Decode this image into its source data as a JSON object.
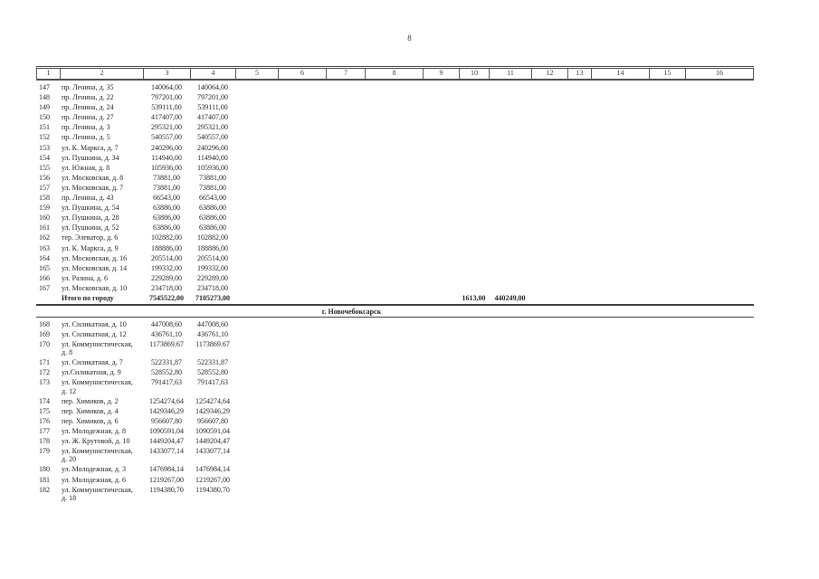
{
  "page": {
    "number": "8"
  },
  "table": {
    "column_headers": [
      "1",
      "2",
      "3",
      "4",
      "5",
      "6",
      "7",
      "8",
      "9",
      "10",
      "11",
      "12",
      "13",
      "14",
      "15",
      "16"
    ],
    "city_section_1": {
      "rows": [
        {
          "num": "147",
          "address": "пр. Ленина, д. 35",
          "v3": "140064,00",
          "v4": "140064,00"
        },
        {
          "num": "148",
          "address": "пр. Ленина, д. 22",
          "v3": "797201,00",
          "v4": "797201,00"
        },
        {
          "num": "149",
          "address": "пр. Ленина, д. 24",
          "v3": "539111,00",
          "v4": "539111,00"
        },
        {
          "num": "150",
          "address": "пр. Ленина, д. 27",
          "v3": "417407,00",
          "v4": "417407,00"
        },
        {
          "num": "151",
          "address": "пр. Ленина, д. 3",
          "v3": "295321,00",
          "v4": "295321,00"
        },
        {
          "num": "152",
          "address": "пр. Ленина, д. 5",
          "v3": "540557,00",
          "v4": "540557,00"
        },
        {
          "num": "153",
          "address": "ул. К. Маркса, д. 7",
          "v3": "240296,00",
          "v4": "240296,00"
        },
        {
          "num": "154",
          "address": "ул. Пушкина, д. 34",
          "v3": "114940,00",
          "v4": "114940,00"
        },
        {
          "num": "155",
          "address": "ул. Южная, д. 8",
          "v3": "105936,00",
          "v4": "105936,00"
        },
        {
          "num": "156",
          "address": "ул. Московская, д. 8",
          "v3": "73881,00",
          "v4": "73881,00"
        },
        {
          "num": "157",
          "address": "ул. Московская, д. 7",
          "v3": "73881,00",
          "v4": "73881,00"
        },
        {
          "num": "158",
          "address": "пр. Ленина, д. 43",
          "v3": "66543,00",
          "v4": "66543,00"
        },
        {
          "num": "159",
          "address": "ул. Пушкина, д. 54",
          "v3": "63886,00",
          "v4": "63886,00"
        },
        {
          "num": "160",
          "address": "ул. Пушкина, д. 28",
          "v3": "63886,00",
          "v4": "63886,00"
        },
        {
          "num": "161",
          "address": "ул. Пушкина, д. 52",
          "v3": "63886,00",
          "v4": "63886,00"
        },
        {
          "num": "162",
          "address": "тер. Элеватор, д. 6",
          "v3": "102882,00",
          "v4": "102882,00"
        },
        {
          "num": "163",
          "address": "ул. К. Маркса, д. 9",
          "v3": "188886,00",
          "v4": "188886,00"
        },
        {
          "num": "164",
          "address": "ул. Московская, д. 16",
          "v3": "205514,00",
          "v4": "205514,00"
        },
        {
          "num": "165",
          "address": "ул. Московская, д. 14",
          "v3": "199332,00",
          "v4": "199332,00"
        },
        {
          "num": "166",
          "address": "ул. Разина, д. 6",
          "v3": "229289,00",
          "v4": "229289,00"
        },
        {
          "num": "167",
          "address": "ул. Московская, д. 10",
          "v3": "234718,00",
          "v4": "234718,00"
        }
      ],
      "total": {
        "label": "Итого по городу",
        "v3": "7545522,00",
        "v4": "7105273,00",
        "v10": "1613,00",
        "v11": "440249,00"
      }
    },
    "city_section_2": {
      "title": "г. Новочебоксарск",
      "rows": [
        {
          "num": "168",
          "address": "ул. Силикатная, д. 10",
          "v3": "447008,60",
          "v4": "447008,60"
        },
        {
          "num": "169",
          "address": "ул. Силикатная, д. 12",
          "v3": "436761,10",
          "v4": "436761,10"
        },
        {
          "num": "170",
          "address": "ул. Коммунистическая, д. 8",
          "v3": "1173869.67",
          "v4": "1173869.67"
        },
        {
          "num": "171",
          "address": "ул. Силикатная, д. 7",
          "v3": "522331,87",
          "v4": "522331,87"
        },
        {
          "num": "172",
          "address": "ул.Силикатная, д. 9",
          "v3": "528552,80",
          "v4": "528552,80"
        },
        {
          "num": "173",
          "address": "ул. Коммунистическая, д. 12",
          "v3": "791417,63",
          "v4": "791417,63"
        },
        {
          "num": "174",
          "address": "пер. Химиков, д. 2",
          "v3": "1254274,64",
          "v4": "1254274,64"
        },
        {
          "num": "175",
          "address": "пер. Химиков, д. 4",
          "v3": "1429346,29",
          "v4": "1429346,29"
        },
        {
          "num": "176",
          "address": "пер. Химиков, д. 6",
          "v3": "956607,80",
          "v4": "956607,80"
        },
        {
          "num": "177",
          "address": "ул. Молодежная, д. 8",
          "v3": "1090591,04",
          "v4": "1090591,04"
        },
        {
          "num": "178",
          "address": "ул. Ж. Крутовой, д. 10",
          "v3": "1449204,47",
          "v4": "1449204,47"
        },
        {
          "num": "179",
          "address": "ул. Коммунистическая, д. 20",
          "v3": "1433077,14",
          "v4": "1433077,14"
        },
        {
          "num": "180",
          "address": "ул. Молодежная, д. 3",
          "v3": "1476984,14",
          "v4": "1476984,14"
        },
        {
          "num": "181",
          "address": "ул. Молодежная, д. 6",
          "v3": "1219267,00",
          "v4": "1219267,00"
        },
        {
          "num": "182",
          "address": "ул. Коммунистическая, д. 18",
          "v3": "1194380,70",
          "v4": "1194380,70"
        }
      ]
    }
  }
}
